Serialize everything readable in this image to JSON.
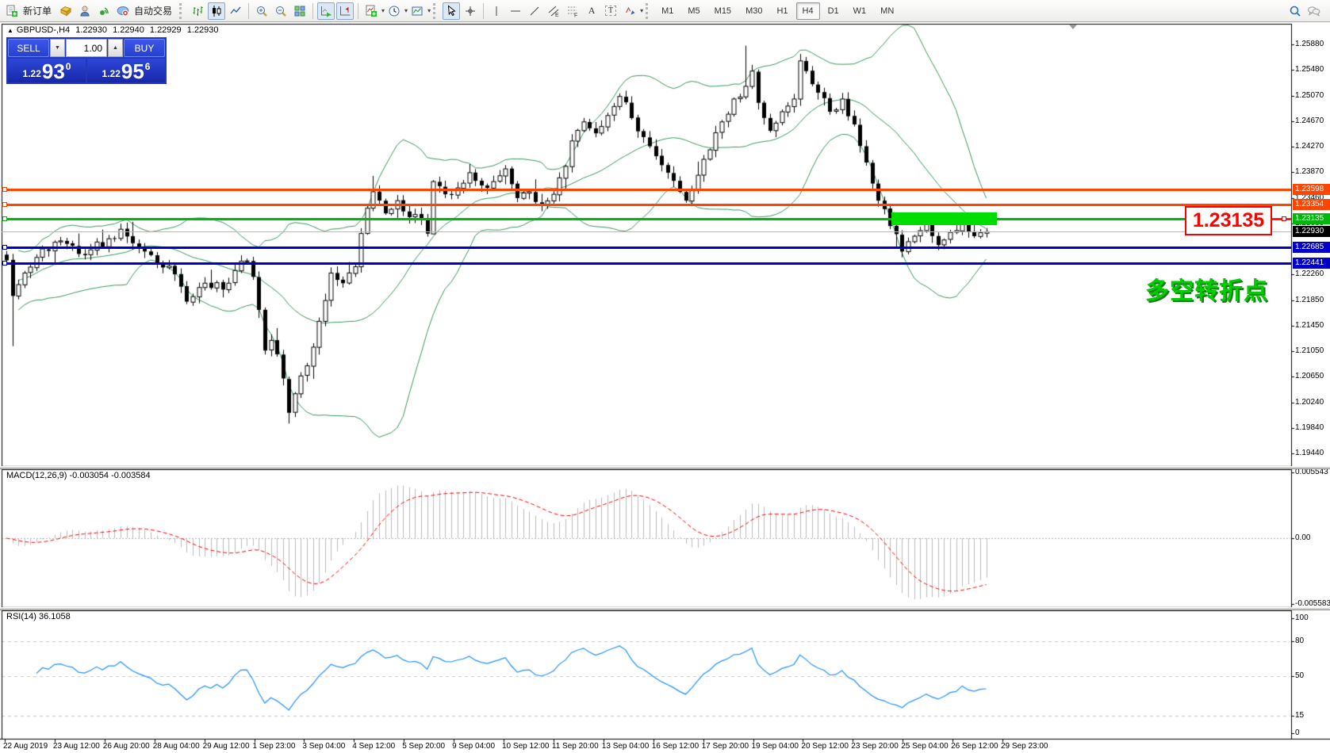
{
  "toolbar": {
    "new_order_label": "新订单",
    "auto_trading_label": "自动交易",
    "icon_names": [
      "new-order",
      "chart-profiles",
      "community",
      "signals",
      "auto-trading",
      "bar-chart-mode",
      "candlestick-mode",
      "line-chart-mode",
      "zoom-in",
      "zoom-out",
      "tile-windows",
      "auto-scroll",
      "chart-shift",
      "indicators",
      "periods",
      "templates",
      "cursor",
      "crosshair",
      "vertical-line",
      "horizontal-line",
      "trendline",
      "equidistant-channel",
      "fibonacci-retracement",
      "text",
      "text-label",
      "arrows",
      "search",
      "community-chat"
    ],
    "text_tool_glyph": "A",
    "label_tool_glyph": "T",
    "channel_glyph": "E",
    "fibo_glyph": "F",
    "timeframes": [
      "M1",
      "M5",
      "M15",
      "M30",
      "H1",
      "H4",
      "D1",
      "W1",
      "MN"
    ],
    "active_timeframe": "H4"
  },
  "one_click": {
    "sell_label": "SELL",
    "buy_label": "BUY",
    "volume": "1.00",
    "bid_prefix": "1.22",
    "bid_big": "93",
    "bid_sup": "0",
    "ask_prefix": "1.22",
    "ask_big": "95",
    "ask_sup": "6"
  },
  "symbol_bar": {
    "symbol": "GBPUSD-,H4",
    "open": "1.22930",
    "high": "1.22940",
    "low": "1.22929",
    "close": "1.22930"
  },
  "levels": [
    {
      "price": 1.23598,
      "label": "1.23598",
      "color": "#ff4500"
    },
    {
      "price": 1.23354,
      "label": "1.23354",
      "color": "#ff4500"
    },
    {
      "price": 1.23135,
      "label": "1.23135",
      "color": "#00b80c"
    },
    {
      "price": 1.22685,
      "label": "1.22685",
      "color": "#0000c8"
    },
    {
      "price": 1.22441,
      "label": "1.22441",
      "color": "#0000c8"
    }
  ],
  "current_price": {
    "label": "1.22930",
    "price": 1.2293
  },
  "highlight_zone": {
    "price": 1.23135,
    "bar_start": 148,
    "bar_end": 165,
    "color": "#00dd00"
  },
  "callout": {
    "text": "1.23135",
    "color": "#ff0000"
  },
  "annotation": {
    "text": "多空转折点",
    "color": "#00cc00"
  },
  "price_axis": {
    "ticks": [
      "1.25880",
      "1.25480",
      "1.25070",
      "1.24670",
      "1.24270",
      "1.23870",
      "1.23460",
      "1.23060",
      "1.22260",
      "1.21850",
      "1.21450",
      "1.21050",
      "1.20650",
      "1.20240",
      "1.19840",
      "1.19440"
    ]
  },
  "time_axis": {
    "labels": [
      "22 Aug 2019",
      "23 Aug 12:00",
      "26 Aug 20:00",
      "28 Aug 04:00",
      "29 Aug 12:00",
      "1 Sep 23:00",
      "3 Sep 04:00",
      "4 Sep 12:00",
      "5 Sep 20:00",
      "9 Sep 04:00",
      "10 Sep 12:00",
      "11 Sep 20:00",
      "13 Sep 04:00",
      "16 Sep 12:00",
      "17 Sep 20:00",
      "19 Sep 04:00",
      "20 Sep 12:00",
      "23 Sep 20:00",
      "25 Sep 04:00",
      "26 Sep 12:00",
      "29 Sep 23:00"
    ]
  },
  "macd_pane": {
    "title": "MACD(12,26,9)",
    "value_main": "-0.003054",
    "value_signal": "-0.003584",
    "axis_ticks": [
      "0.005543",
      "0.00",
      "-0.005583"
    ],
    "histogram_color": "#bbbbbb",
    "signal_color": "#ff0000"
  },
  "rsi_pane": {
    "title": "RSI(14)",
    "value": "36.1058",
    "axis_ticks": [
      "100",
      "80",
      "50",
      "15",
      "0"
    ],
    "levels": [
      80,
      50,
      15
    ],
    "line_color": "#1e90ff"
  },
  "chart_data": {
    "type": "candlestick",
    "symbol": "GBPUSD-",
    "timeframe": "H4",
    "title": "GBPUSD- H4 with Bollinger Bands, MACD(12,26,9), RSI(14)",
    "bars": 164,
    "ylim": [
      1.1924,
      1.262
    ],
    "grid": false,
    "bollinger": {
      "period": 20,
      "deviation": 2,
      "color": "#35975a"
    },
    "close_waypoints": [
      [
        0,
        1.2248
      ],
      [
        1,
        1.2192
      ],
      [
        3,
        1.2228
      ],
      [
        6,
        1.2266
      ],
      [
        10,
        1.2274
      ],
      [
        13,
        1.2256
      ],
      [
        17,
        1.2282
      ],
      [
        19,
        1.2297
      ],
      [
        22,
        1.2268
      ],
      [
        25,
        1.2243
      ],
      [
        28,
        1.2226
      ],
      [
        30,
        1.2183
      ],
      [
        33,
        1.2212
      ],
      [
        36,
        1.2202
      ],
      [
        38,
        1.2232
      ],
      [
        40,
        1.2247
      ],
      [
        41,
        1.2222
      ],
      [
        42,
        1.217
      ],
      [
        43,
        1.2106
      ],
      [
        44,
        1.2122
      ],
      [
        45,
        1.21
      ],
      [
        46,
        1.2062
      ],
      [
        47,
        1.2008
      ],
      [
        48,
        1.2038
      ],
      [
        50,
        1.2082
      ],
      [
        52,
        1.2152
      ],
      [
        54,
        1.2228
      ],
      [
        56,
        1.2212
      ],
      [
        58,
        1.2238
      ],
      [
        60,
        1.233
      ],
      [
        61,
        1.2356
      ],
      [
        63,
        1.2322
      ],
      [
        65,
        1.2342
      ],
      [
        67,
        1.2316
      ],
      [
        69,
        1.2312
      ],
      [
        70,
        1.229
      ],
      [
        71,
        1.2372
      ],
      [
        73,
        1.2352
      ],
      [
        75,
        1.2362
      ],
      [
        77,
        1.2386
      ],
      [
        79,
        1.2366
      ],
      [
        81,
        1.2372
      ],
      [
        83,
        1.2392
      ],
      [
        85,
        1.2346
      ],
      [
        87,
        1.2356
      ],
      [
        89,
        1.2336
      ],
      [
        91,
        1.2352
      ],
      [
        93,
        1.2396
      ],
      [
        94,
        1.2436
      ],
      [
        96,
        1.2466
      ],
      [
        98,
        1.2448
      ],
      [
        100,
        1.2476
      ],
      [
        102,
        1.2506
      ],
      [
        104,
        1.2472
      ],
      [
        106,
        1.2442
      ],
      [
        108,
        1.2412
      ],
      [
        110,
        1.2386
      ],
      [
        112,
        1.2356
      ],
      [
        113,
        1.2342
      ],
      [
        115,
        1.2382
      ],
      [
        117,
        1.2422
      ],
      [
        119,
        1.2466
      ],
      [
        121,
        1.2502
      ],
      [
        123,
        1.2522
      ],
      [
        124,
        1.2546
      ],
      [
        125,
        1.2496
      ],
      [
        127,
        1.2452
      ],
      [
        129,
        1.2482
      ],
      [
        131,
        1.2502
      ],
      [
        132,
        1.2562
      ],
      [
        133,
        1.2546
      ],
      [
        135,
        1.2512
      ],
      [
        137,
        1.2482
      ],
      [
        139,
        1.2502
      ],
      [
        141,
        1.2462
      ],
      [
        143,
        1.2402
      ],
      [
        145,
        1.2342
      ],
      [
        147,
        1.2302
      ],
      [
        149,
        1.2262
      ],
      [
        151,
        1.2286
      ],
      [
        153,
        1.2306
      ],
      [
        155,
        1.2272
      ],
      [
        157,
        1.2292
      ],
      [
        159,
        1.2312
      ],
      [
        161,
        1.2286
      ],
      [
        163,
        1.2293
      ]
    ],
    "wick_overrides": {
      "1": {
        "low": 1.2113
      },
      "47": {
        "low": 1.1991
      },
      "61": {
        "high": 1.2381
      },
      "71": {
        "low": 1.2291
      },
      "83": {
        "high": 1.2398
      },
      "123": {
        "high": 1.2586
      },
      "132": {
        "high": 1.2573
      }
    }
  }
}
